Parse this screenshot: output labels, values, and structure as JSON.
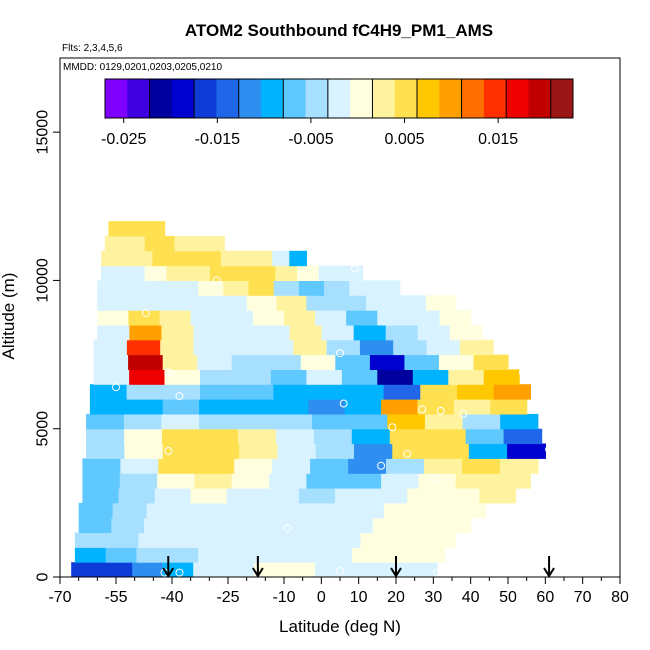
{
  "chart_data": {
    "type": "heatmap",
    "title": "ATOM2 Southbound fC4H9_PM1_AMS",
    "subtitle_flights": "Flts: 2,3,4,5,6",
    "subtitle_dates": "MMDD: 0129,0201,0203,0205,0210",
    "xlabel": "Latitude (deg N)",
    "ylabel": "Altitude (m)",
    "xlim": [
      -70,
      80
    ],
    "ylim": [
      0,
      17500
    ],
    "x_ticks": [
      -70,
      -55,
      -40,
      -25,
      -10,
      0,
      10,
      20,
      30,
      40,
      50,
      60,
      70,
      80
    ],
    "x_tick_labels": [
      "-70",
      "-55",
      "-40",
      "-25",
      "-10",
      "0",
      "10",
      "20",
      "30",
      "40",
      "50",
      "60",
      "70",
      "80"
    ],
    "y_ticks": [
      0,
      5000,
      10000,
      15000
    ],
    "y_tick_labels": [
      "0",
      "5000",
      "10000",
      "15000"
    ],
    "colorbar": {
      "range": [
        -0.027,
        0.023
      ],
      "ticks": [
        -0.025,
        -0.015,
        -0.005,
        0.005,
        0.015
      ],
      "tick_labels": [
        "-0.025",
        "-0.015",
        "-0.005",
        "0.005",
        "0.015"
      ],
      "colors": [
        "#7f00ff",
        "#3f00e0",
        "#00009f",
        "#0000cf",
        "#0d3dd6",
        "#1f66e8",
        "#2f8ff0",
        "#00b3ff",
        "#5fc8ff",
        "#a7e0ff",
        "#d8f2ff",
        "#ffffe0",
        "#fff3a0",
        "#ffe050",
        "#ffc800",
        "#ffa000",
        "#ff7000",
        "#ff3000",
        "#ee0000",
        "#c00000",
        "#9a1515"
      ]
    },
    "curtain_strips": [
      {
        "alt": 250,
        "lat_min": -67,
        "lat_max": 31,
        "values": [
          -0.016,
          -0.016,
          -0.012,
          -0.008,
          -0.003,
          -0.001,
          0.0,
          0.0,
          -0.001,
          -0.001,
          -0.002,
          -0.003
        ]
      },
      {
        "alt": 750,
        "lat_min": -66,
        "lat_max": 33,
        "values": [
          -0.008,
          -0.007,
          -0.005,
          -0.004,
          -0.003,
          -0.002,
          -0.002,
          -0.001,
          -0.001,
          0.0,
          0.0,
          0.0
        ]
      },
      {
        "alt": 1250,
        "lat_min": -66,
        "lat_max": 36,
        "values": [
          -0.005,
          -0.004,
          -0.003,
          -0.003,
          -0.002,
          -0.002,
          -0.002,
          -0.001,
          -0.001,
          0.0,
          0.0,
          0.001
        ]
      },
      {
        "alt": 1750,
        "lat_min": -65,
        "lat_max": 40,
        "values": [
          -0.006,
          -0.005,
          -0.003,
          -0.002,
          -0.002,
          -0.002,
          -0.002,
          -0.002,
          -0.001,
          0.0,
          0.0,
          0.001
        ]
      },
      {
        "alt": 2250,
        "lat_min": -65,
        "lat_max": 44,
        "values": [
          -0.007,
          -0.005,
          -0.003,
          -0.002,
          -0.001,
          -0.002,
          -0.003,
          -0.002,
          -0.001,
          0.0,
          0.001,
          0.001
        ]
      },
      {
        "alt": 2750,
        "lat_min": -64,
        "lat_max": 52,
        "values": [
          -0.007,
          -0.005,
          -0.002,
          0.0,
          -0.001,
          -0.003,
          -0.004,
          -0.003,
          -0.001,
          0.0,
          0.001,
          0.002
        ]
      },
      {
        "alt": 3250,
        "lat_min": -64,
        "lat_max": 56,
        "values": [
          -0.007,
          -0.004,
          0.001,
          0.002,
          0.0,
          -0.003,
          -0.006,
          -0.006,
          -0.003,
          0.001,
          0.002,
          0.002
        ]
      },
      {
        "alt": 3750,
        "lat_min": -64,
        "lat_max": 58,
        "values": [
          -0.006,
          -0.002,
          0.004,
          0.004,
          0.001,
          -0.002,
          -0.006,
          -0.011,
          -0.004,
          0.003,
          0.004,
          0.002
        ]
      },
      {
        "alt": 4250,
        "lat_min": -63,
        "lat_max": 60,
        "values": [
          -0.005,
          0.001,
          0.006,
          0.005,
          0.002,
          -0.001,
          -0.005,
          -0.012,
          0.004,
          0.006,
          -0.008,
          -0.018
        ]
      },
      {
        "alt": 4750,
        "lat_min": -63,
        "lat_max": 59,
        "values": [
          -0.005,
          0.001,
          0.005,
          0.004,
          0.002,
          -0.001,
          -0.004,
          -0.01,
          0.006,
          0.004,
          -0.006,
          -0.014
        ]
      },
      {
        "alt": 5250,
        "lat_min": -63,
        "lat_max": 58,
        "values": [
          -0.006,
          -0.004,
          -0.003,
          -0.004,
          -0.005,
          -0.005,
          -0.006,
          -0.007,
          0.007,
          0.002,
          -0.004,
          -0.01
        ]
      },
      {
        "alt": 5750,
        "lat_min": -62,
        "lat_max": 55,
        "values": [
          -0.01,
          -0.008,
          -0.007,
          -0.008,
          -0.009,
          -0.01,
          -0.012,
          -0.01,
          0.009,
          0.006,
          0.002,
          0.004
        ]
      },
      {
        "alt": 6250,
        "lat_min": -62,
        "lat_max": 56,
        "values": [
          -0.008,
          -0.005,
          -0.004,
          -0.006,
          -0.007,
          -0.008,
          -0.01,
          -0.008,
          -0.014,
          0.004,
          0.007,
          0.01
        ]
      },
      {
        "alt": 6750,
        "lat_min": -61,
        "lat_max": 53,
        "values": [
          -0.003,
          0.016,
          0.001,
          -0.004,
          -0.005,
          -0.006,
          -0.002,
          -0.006,
          -0.02,
          -0.008,
          0.002,
          0.008
        ]
      },
      {
        "alt": 7250,
        "lat_min": -61,
        "lat_max": 50,
        "values": [
          -0.002,
          0.019,
          0.002,
          -0.003,
          -0.004,
          -0.004,
          0.0,
          -0.006,
          -0.018,
          -0.006,
          0.0,
          0.004
        ]
      },
      {
        "alt": 7750,
        "lat_min": -61,
        "lat_max": 46,
        "values": [
          -0.001,
          0.014,
          0.003,
          -0.002,
          -0.003,
          -0.002,
          0.002,
          -0.004,
          -0.012,
          -0.004,
          -0.001,
          0.002
        ]
      },
      {
        "alt": 8250,
        "lat_min": -60,
        "lat_max": 43,
        "values": [
          -0.001,
          0.01,
          0.002,
          -0.002,
          -0.003,
          -0.002,
          0.002,
          -0.002,
          -0.008,
          -0.004,
          -0.001,
          0.001
        ]
      },
      {
        "alt": 8750,
        "lat_min": -60,
        "lat_max": 40,
        "values": [
          0.0,
          0.006,
          0.002,
          -0.001,
          -0.002,
          0.0,
          0.003,
          -0.002,
          -0.006,
          -0.003,
          -0.001,
          0.0
        ]
      },
      {
        "alt": 9250,
        "lat_min": -60,
        "lat_max": 36,
        "values": [
          -0.002,
          -0.001,
          -0.002,
          -0.002,
          -0.001,
          0.001,
          0.003,
          -0.004,
          -0.005,
          -0.003,
          -0.001,
          0.0
        ]
      },
      {
        "alt": 9750,
        "lat_min": -60,
        "lat_max": 21,
        "values": [
          -0.003,
          -0.002,
          -0.002,
          -0.001,
          0.001,
          0.003,
          0.004,
          -0.004,
          -0.006,
          -0.004,
          -0.002,
          -0.001
        ]
      },
      {
        "alt": 10250,
        "lat_min": -59,
        "lat_max": 11,
        "values": [
          -0.001,
          -0.001,
          0.0,
          0.002,
          0.003,
          0.004,
          0.005,
          0.004,
          0.002,
          0.001,
          -0.002,
          -0.003
        ]
      },
      {
        "alt": 10750,
        "lat_min": -59,
        "lat_max": -4,
        "values": [
          0.002,
          0.003,
          0.003,
          0.004,
          0.004,
          0.004,
          0.004,
          0.003,
          0.003,
          0.002,
          -0.002,
          -0.008
        ]
      },
      {
        "alt": 11250,
        "lat_min": -58,
        "lat_max": -26,
        "values": [
          0.002,
          0.003,
          0.003,
          0.003,
          0.004,
          0.004,
          0.004,
          0.003,
          0.003,
          0.003,
          0.002,
          0.002
        ]
      },
      {
        "alt": 11750,
        "lat_min": -57,
        "lat_max": -42,
        "values": [
          0.004,
          0.005,
          0.005,
          0.005,
          0.006,
          0.006,
          0.006,
          0.005,
          0.005,
          0.004,
          0.004,
          0.004
        ]
      }
    ],
    "sample_points": [
      {
        "lat": -42,
        "alt": 150
      },
      {
        "lat": -38,
        "alt": 150
      },
      {
        "lat": 5,
        "alt": 200
      },
      {
        "lat": 31,
        "alt": 150
      },
      {
        "lat": -9,
        "alt": 1650
      },
      {
        "lat": 30,
        "alt": 3300
      },
      {
        "lat": 16,
        "alt": 3750
      },
      {
        "lat": -41,
        "alt": 4250
      },
      {
        "lat": 23,
        "alt": 4150
      },
      {
        "lat": 19,
        "alt": 5050
      },
      {
        "lat": 61,
        "alt": 4300
      },
      {
        "lat": 6,
        "alt": 5850
      },
      {
        "lat": 27,
        "alt": 5650
      },
      {
        "lat": 32,
        "alt": 5600
      },
      {
        "lat": 38,
        "alt": 5500
      },
      {
        "lat": -55,
        "alt": 6400
      },
      {
        "lat": -38,
        "alt": 6100
      },
      {
        "lat": -41,
        "alt": 6900
      },
      {
        "lat": 5,
        "alt": 7550
      },
      {
        "lat": 54,
        "alt": 6900
      },
      {
        "lat": -47,
        "alt": 8900
      },
      {
        "lat": -28,
        "alt": 10000
      },
      {
        "lat": 9,
        "alt": 10400
      }
    ],
    "arrows_lat": [
      -41,
      -17,
      20,
      61
    ],
    "grid": false
  }
}
